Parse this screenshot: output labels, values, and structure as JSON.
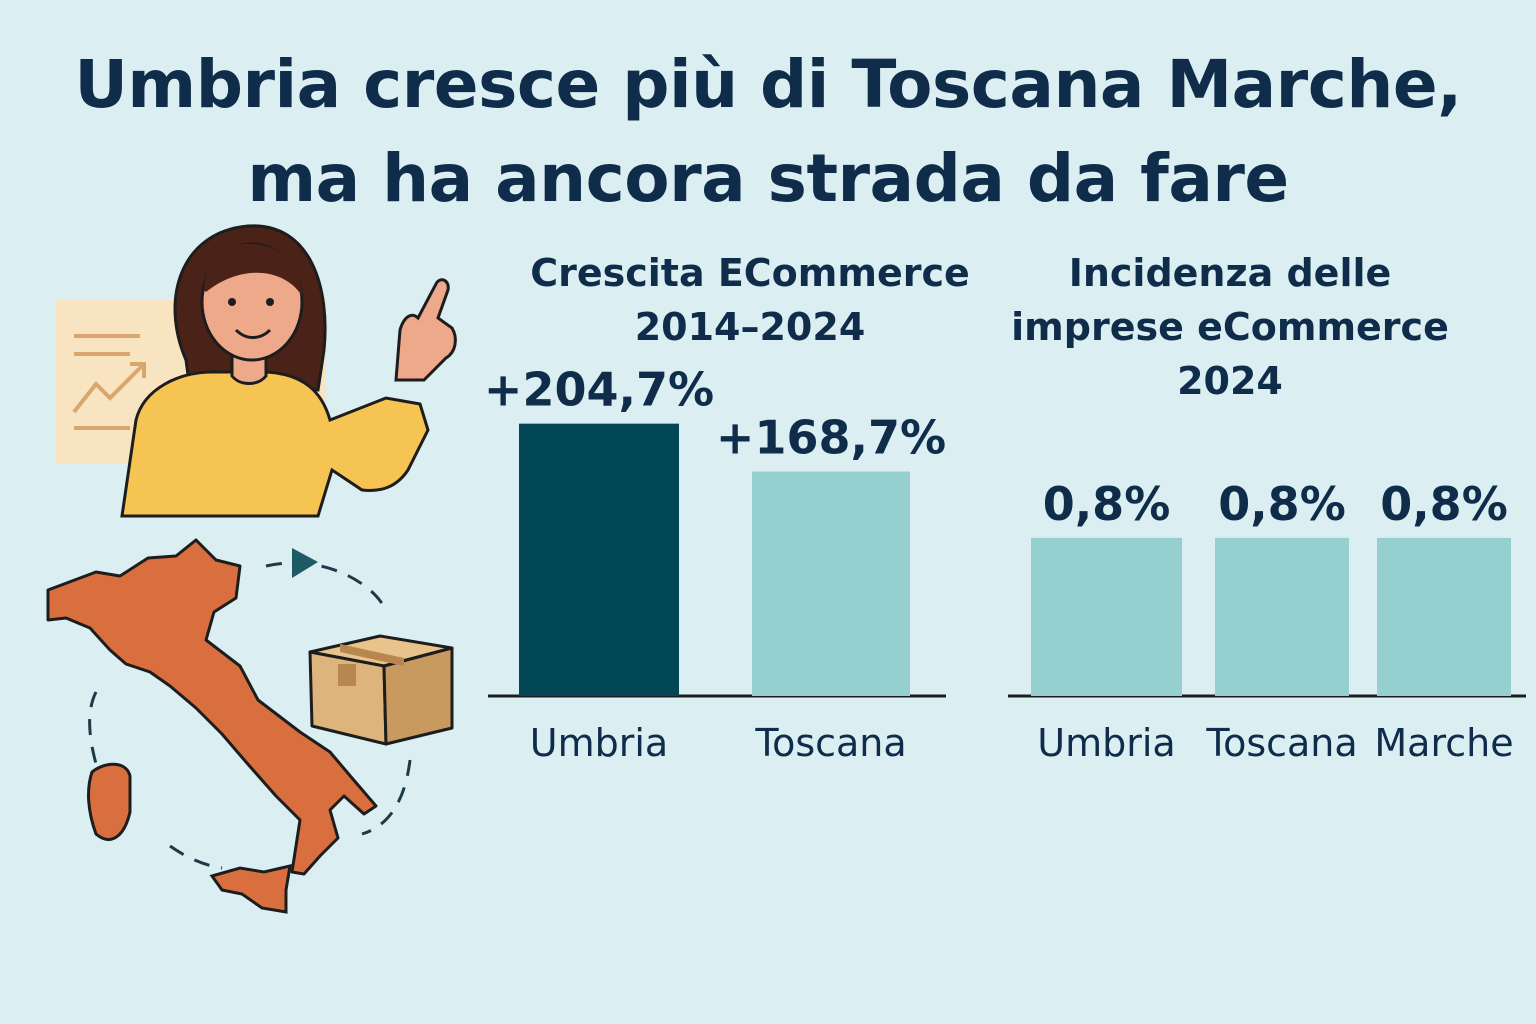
{
  "headline": {
    "line1": "Umbria cresce più di Toscana  Marche,",
    "line2": "ma ha ancora strada da fare"
  },
  "colors": {
    "background": "#dbeff2",
    "text": "#0f2d4a",
    "bar_dark": "#004654",
    "bar_light": "#95cfd0",
    "italy_map": "#d96f3e",
    "shirt": "#f6c452",
    "hair": "#4b2218",
    "skin": "#eea88a",
    "box": "#ddb57c"
  },
  "illustration": {
    "icons": [
      "woman-pointing-icon",
      "growth-chart-card-icon",
      "italy-map-icon",
      "parcel-box-icon",
      "dashed-circular-arrow-icon"
    ]
  },
  "chart_data": [
    {
      "type": "bar",
      "title": "Crescita ECommerce 2014–2024",
      "title_lines": [
        "Crescita ECommerce",
        "2014–2024"
      ],
      "categories": [
        "Umbria",
        "Toscana"
      ],
      "values": [
        204.7,
        168.7
      ],
      "value_labels": [
        "+204,7%",
        "+168,7%"
      ],
      "bar_colors": [
        "#004654",
        "#95cfd0"
      ],
      "ylim": [
        0,
        230
      ],
      "xlabel": "",
      "ylabel": "",
      "grid": false,
      "legend": "none"
    },
    {
      "type": "bar",
      "title": "Incidenza delle imprese eCommerce 2024",
      "title_lines": [
        "Incidenza delle",
        "imprese eCommerce",
        "2024"
      ],
      "categories": [
        "Umbria",
        "Toscana",
        "Marche"
      ],
      "values": [
        0.8,
        0.8,
        0.8
      ],
      "value_labels": [
        "0,8%",
        "0,8%",
        "0,8%"
      ],
      "bar_colors": [
        "#95cfd0",
        "#95cfd0",
        "#95cfd0"
      ],
      "ylim": [
        0,
        1.3
      ],
      "xlabel": "",
      "ylabel": "",
      "grid": false,
      "legend": "none"
    }
  ]
}
